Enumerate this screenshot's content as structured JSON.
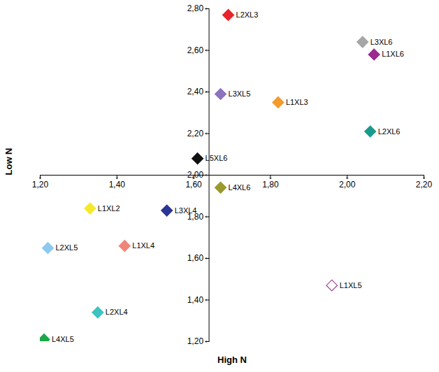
{
  "chart_data": {
    "type": "scatter",
    "x_label": "High N",
    "y_label": "Low N",
    "xlim": [
      1.2,
      2.2
    ],
    "ylim": [
      1.2,
      2.8
    ],
    "xticks": [
      {
        "value": 1.2,
        "label": "1,20"
      },
      {
        "value": 1.4,
        "label": "1,40"
      },
      {
        "value": 1.6,
        "label": "1,60"
      },
      {
        "value": 1.8,
        "label": "1,80"
      },
      {
        "value": 2.0,
        "label": "2,00"
      },
      {
        "value": 2.2,
        "label": "2,20"
      }
    ],
    "yticks": [
      {
        "value": 1.2,
        "label": "1,20"
      },
      {
        "value": 1.4,
        "label": "1,40"
      },
      {
        "value": 1.6,
        "label": "1,60"
      },
      {
        "value": 1.8,
        "label": "1,80"
      },
      {
        "value": 2.0,
        "label": "2,00"
      },
      {
        "value": 2.2,
        "label": "2,20"
      },
      {
        "value": 2.4,
        "label": "2,40"
      },
      {
        "value": 2.6,
        "label": "2,60"
      },
      {
        "value": 2.8,
        "label": "2,80"
      }
    ],
    "axis_cross": {
      "x": 1.64,
      "y": 2.0
    },
    "grid": false,
    "points": [
      {
        "label": "L2XL3",
        "x": 1.69,
        "y": 2.77,
        "color": "#e8232a",
        "marker": "diamond"
      },
      {
        "label": "L3XL6",
        "x": 2.04,
        "y": 2.64,
        "color": "#a6a6a6",
        "marker": "diamond"
      },
      {
        "label": "L1XL6",
        "x": 2.07,
        "y": 2.58,
        "color": "#9b2a91",
        "marker": "diamond"
      },
      {
        "label": "L3XL5",
        "x": 1.67,
        "y": 2.39,
        "color": "#8c72bf",
        "marker": "diamond"
      },
      {
        "label": "L1XL3",
        "x": 1.82,
        "y": 2.35,
        "color": "#f39b2b",
        "marker": "diamond"
      },
      {
        "label": "L2XL6",
        "x": 2.06,
        "y": 2.21,
        "color": "#1a9a8c",
        "marker": "diamond"
      },
      {
        "label": "L5XL6",
        "x": 1.61,
        "y": 2.08,
        "color": "#111111",
        "marker": "diamond"
      },
      {
        "label": "L4XL6",
        "x": 1.67,
        "y": 1.94,
        "color": "#9a9a2e",
        "marker": "diamond"
      },
      {
        "label": "L1XL2",
        "x": 1.33,
        "y": 1.84,
        "color": "#f4ea2a",
        "marker": "diamond"
      },
      {
        "label": "L3XL4",
        "x": 1.53,
        "y": 1.83,
        "color": "#2a3596",
        "marker": "diamond"
      },
      {
        "label": "L2XL5",
        "x": 1.22,
        "y": 1.65,
        "color": "#8ec9ef",
        "marker": "diamond"
      },
      {
        "label": "L1XL4",
        "x": 1.42,
        "y": 1.66,
        "color": "#f0867a",
        "marker": "diamond"
      },
      {
        "label": "L1XL5",
        "x": 1.96,
        "y": 1.47,
        "color": "#a0449a",
        "marker": "diamond-open"
      },
      {
        "label": "L2XL4",
        "x": 1.35,
        "y": 1.34,
        "color": "#3cc4c0",
        "marker": "diamond"
      },
      {
        "label": "L4XL5",
        "x": 1.21,
        "y": 1.21,
        "color": "#1aa84a",
        "marker": "diamond"
      }
    ]
  }
}
